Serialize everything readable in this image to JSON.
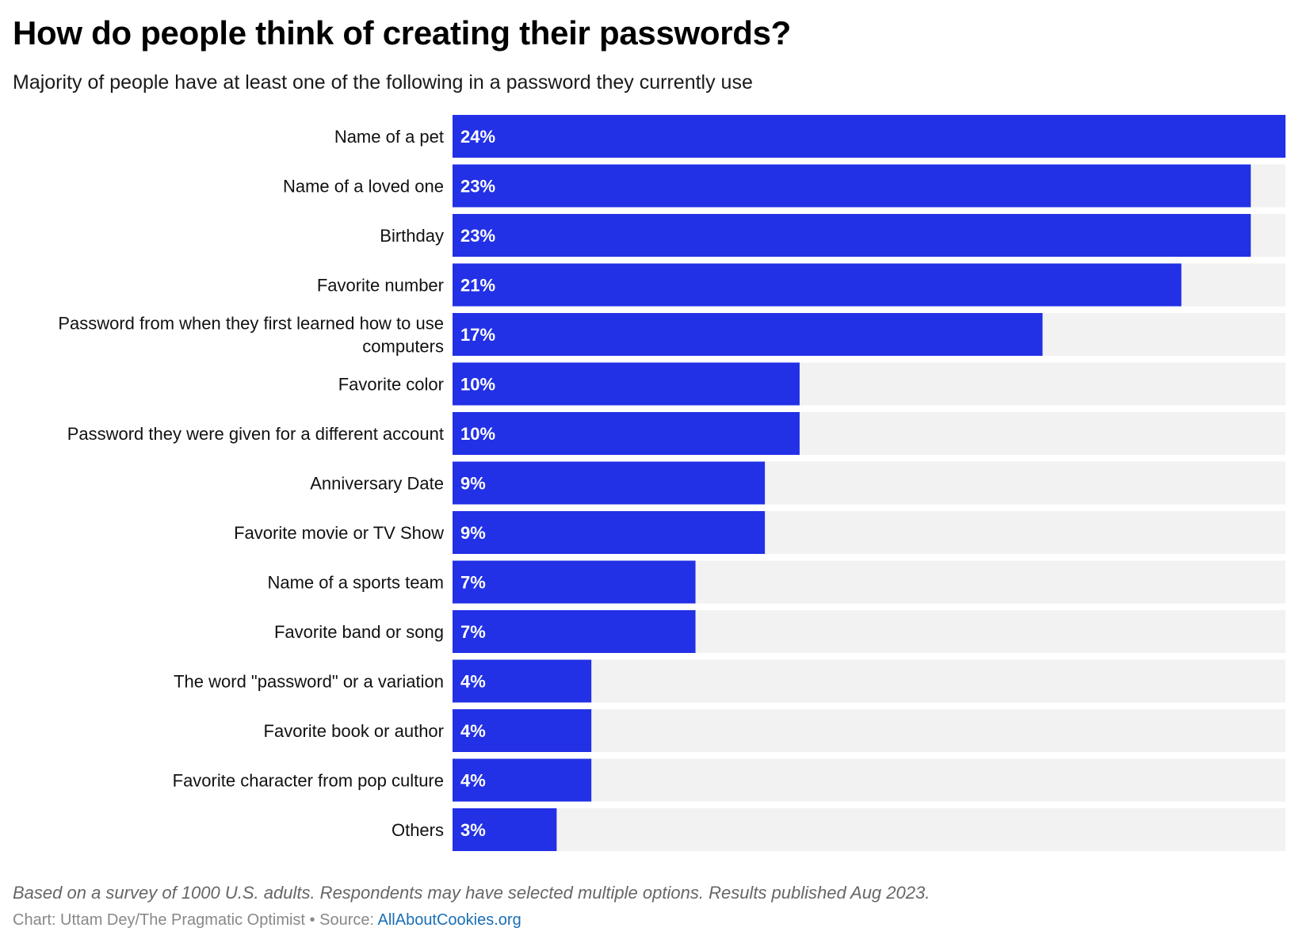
{
  "chart_data": {
    "type": "bar",
    "orientation": "horizontal",
    "title": "How do people think of creating their passwords?",
    "subtitle": "Majority of people have at least one of the following in a password they currently use",
    "categories": [
      "Name of a pet",
      "Name of a loved one",
      "Birthday",
      "Favorite number",
      "Password from when they first learned how to use computers",
      "Favorite color",
      "Password they were given for a different account",
      "Anniversary Date",
      "Favorite movie or TV Show",
      "Name of a sports team",
      "Favorite band or song",
      "The word \"password\" or a variation",
      "Favorite book or author",
      "Favorite character from pop culture",
      "Others"
    ],
    "values": [
      24,
      23,
      23,
      21,
      17,
      10,
      10,
      9,
      9,
      7,
      7,
      4,
      4,
      4,
      3
    ],
    "value_labels": [
      "24%",
      "23%",
      "23%",
      "21%",
      "17%",
      "10%",
      "10%",
      "9%",
      "9%",
      "7%",
      "7%",
      "4%",
      "4%",
      "4%",
      "3%"
    ],
    "xlim": [
      0,
      24
    ],
    "grid": false,
    "legend": "none",
    "bar_color": "#2230e6",
    "track_color": "#f2f2f2"
  },
  "note": "Based on a survey of 1000 U.S. adults. Respondents may have selected multiple options. Results published Aug 2023.",
  "credit": {
    "prefix": "Chart: Uttam Dey/The Pragmatic Optimist",
    "separator": " • ",
    "source_label": "Source: ",
    "source_link": "AllAboutCookies.org",
    "link_color": "#1a6fb5"
  }
}
